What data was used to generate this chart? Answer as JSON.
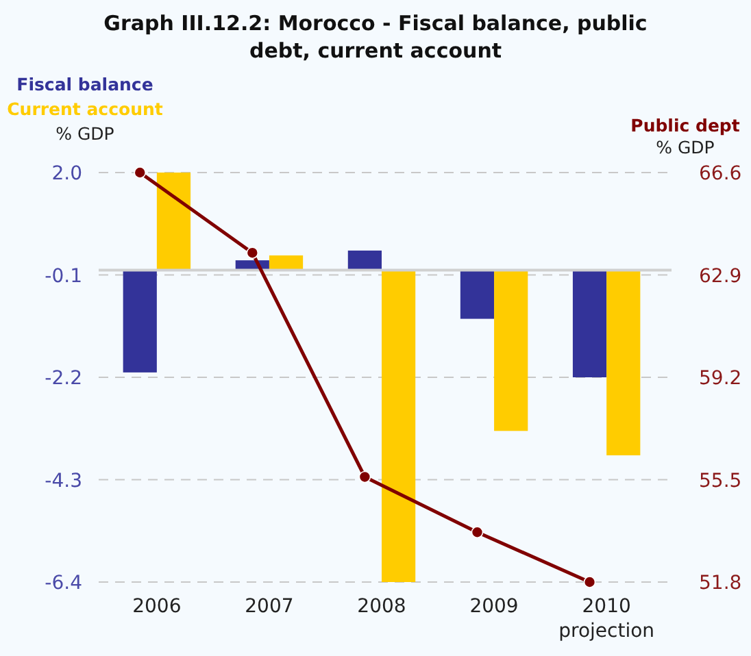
{
  "chart_data": {
    "type": "bar",
    "title": "Graph III.12.2: Morocco - Fiscal balance, public debt, current account",
    "ylabel": "% GDP",
    "y2label": "% GDP",
    "categories": [
      "2006",
      "2007",
      "2008",
      "2009",
      "2010\nprojection"
    ],
    "series": [
      {
        "name": "Fiscal balance",
        "color": "#333399",
        "values": [
          -2.1,
          0.2,
          0.4,
          -1.0,
          -2.2
        ]
      },
      {
        "name": "Current account",
        "color": "#ffcc00",
        "values": [
          2.0,
          0.3,
          -6.4,
          -3.3,
          -3.8
        ]
      },
      {
        "name": "Public dept",
        "type": "line",
        "axis": "y2",
        "color": "#800000",
        "values": [
          66.6,
          63.7,
          55.6,
          53.6,
          51.8
        ]
      }
    ],
    "ylim": [
      -6.4,
      2.0
    ],
    "yticks": [
      {
        "value": 2.0,
        "label": "2.0"
      },
      -0.1,
      -2.2,
      -4.3,
      -6.4
    ],
    "y2lim": [
      51.8,
      66.6
    ],
    "y2ticks": [
      66.6,
      62.9,
      59.2,
      55.5,
      51.8
    ],
    "grid": "y",
    "legend": "top",
    "marker": "circle",
    "line_style": "solid"
  }
}
